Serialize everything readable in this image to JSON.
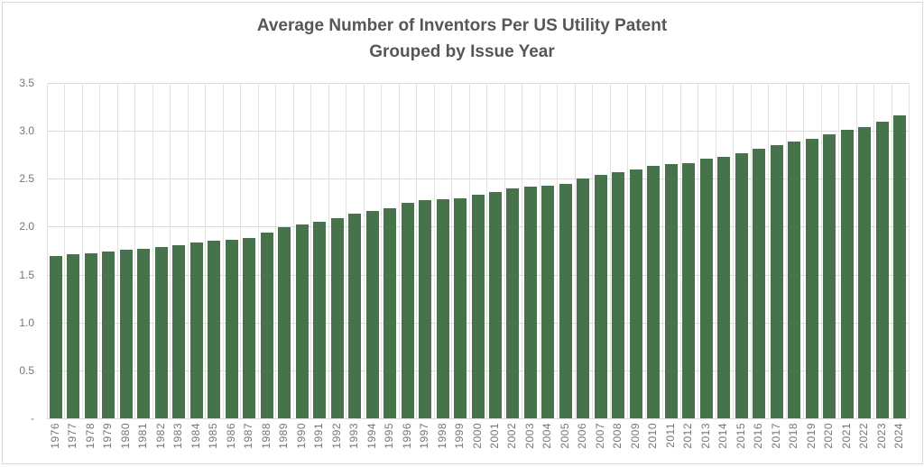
{
  "title": {
    "line1": "Average Number of Inventors Per US Utility Patent",
    "line2": "Grouped by Issue Year"
  },
  "colors": {
    "bar": "#46734b",
    "grid_horizontal": "#dadada",
    "grid_vertical": "#e0e0e0",
    "axis_text": "#767676",
    "title_text": "#565656",
    "background": "#ffffff",
    "chart_border": "#d9d9d9"
  },
  "chart_data": {
    "type": "bar",
    "title": "Average Number of Inventors Per US Utility Patent Grouped by Issue Year",
    "xlabel": "",
    "ylabel": "",
    "ylim": [
      0,
      3.5
    ],
    "ytick_values": [
      0,
      0.5,
      1.0,
      1.5,
      2.0,
      2.5,
      3.0,
      3.5
    ],
    "ytick_labels": [
      "-",
      "0.5",
      "1.0",
      "1.5",
      "2.0",
      "2.5",
      "3.0",
      "3.5"
    ],
    "grid": true,
    "legend": false,
    "categories": [
      "1976",
      "1977",
      "1978",
      "1979",
      "1980",
      "1981",
      "1982",
      "1983",
      "1984",
      "1985",
      "1986",
      "1987",
      "1988",
      "1989",
      "1990",
      "1991",
      "1992",
      "1993",
      "1994",
      "1995",
      "1996",
      "1997",
      "1998",
      "1999",
      "2000",
      "2001",
      "2002",
      "2003",
      "2004",
      "2005",
      "2006",
      "2007",
      "2008",
      "2009",
      "2010",
      "2011",
      "2012",
      "2013",
      "2014",
      "2015",
      "2016",
      "2017",
      "2018",
      "2019",
      "2020",
      "2021",
      "2022",
      "2023",
      "2024"
    ],
    "values": [
      1.69,
      1.71,
      1.72,
      1.74,
      1.76,
      1.77,
      1.79,
      1.81,
      1.83,
      1.85,
      1.86,
      1.88,
      1.94,
      1.99,
      2.02,
      2.05,
      2.09,
      2.14,
      2.16,
      2.19,
      2.25,
      2.28,
      2.29,
      2.3,
      2.33,
      2.36,
      2.4,
      2.42,
      2.43,
      2.45,
      2.5,
      2.54,
      2.57,
      2.6,
      2.63,
      2.65,
      2.66,
      2.71,
      2.73,
      2.77,
      2.81,
      2.85,
      2.89,
      2.92,
      2.96,
      3.01,
      3.04,
      3.1,
      3.16
    ]
  }
}
